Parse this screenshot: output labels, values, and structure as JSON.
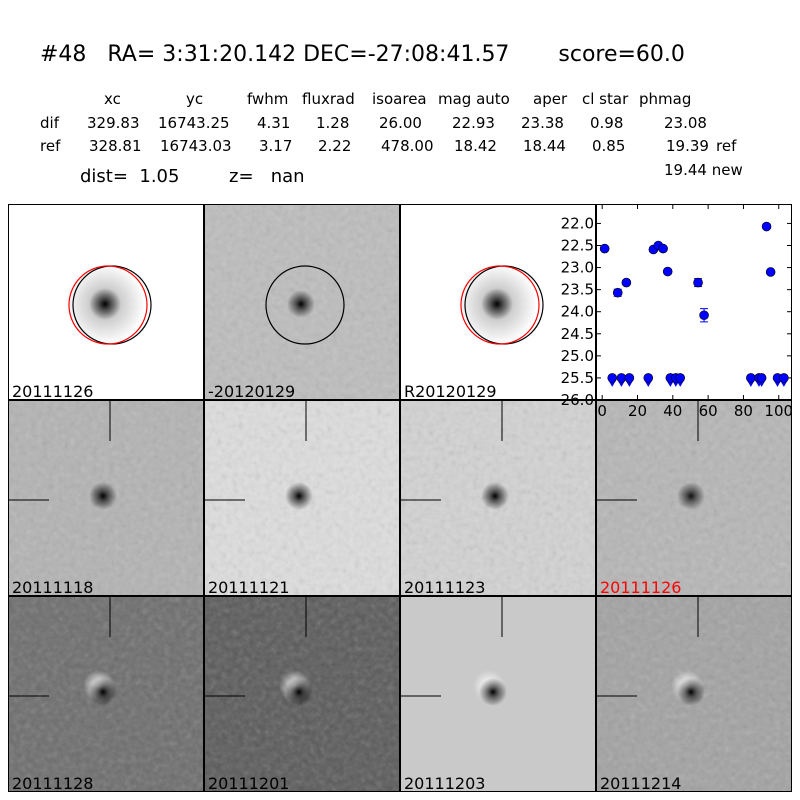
{
  "header": {
    "title": "#48   RA= 3:31:20.142 DEC=-27:08:41.57       score=60.0",
    "columns": [
      "xc",
      "yc",
      "fwhm",
      "fluxrad",
      "isoarea",
      "mag auto",
      "aper",
      "cl star",
      "phmag"
    ],
    "rows": [
      {
        "label": "dif",
        "values": [
          "329.83",
          "16743.25",
          "4.31",
          "1.28",
          "26.00",
          "22.93",
          "23.38",
          "0.98",
          "23.08"
        ],
        "suffix": ""
      },
      {
        "label": "ref",
        "values": [
          "328.81",
          "16743.03",
          "3.17",
          "2.22",
          "478.00",
          "18.42",
          "18.44",
          "0.85",
          "19.39"
        ],
        "suffix": "ref"
      }
    ],
    "new_phmag": "19.44 new",
    "dist": "dist=  1.05",
    "z": "z=   nan"
  },
  "stamps": [
    {
      "label": "20111126",
      "bg": "#ffffff",
      "blob": "#000000",
      "noise": false,
      "circles": [
        "black",
        "red"
      ],
      "cross": false,
      "label_color": "#000000",
      "kind": "ref"
    },
    {
      "label": "-20120129",
      "bg": "#bdbdbd",
      "blob": "#000000",
      "noise": true,
      "circles": [
        "black"
      ],
      "cross": false,
      "label_color": "#000000",
      "kind": "diff"
    },
    {
      "label": "R20120129",
      "bg": "#ffffff",
      "blob": "#000000",
      "noise": false,
      "circles": [
        "black",
        "red"
      ],
      "cross": false,
      "label_color": "#000000",
      "kind": "ref"
    },
    null,
    {
      "label": "20111118",
      "bg": "#b3b3b3",
      "blob": "#000000",
      "noise": true,
      "cross": true,
      "label_color": "#000000"
    },
    {
      "label": "20111121",
      "bg": "#dedede",
      "blob": "#000000",
      "noise": true,
      "cross": true,
      "label_color": "#000000"
    },
    {
      "label": "20111123",
      "bg": "#d3d3d3",
      "blob": "#000000",
      "noise": true,
      "cross": true,
      "label_color": "#000000"
    },
    {
      "label": "20111126",
      "bg": "#b6b6b6",
      "blob": "#111111",
      "noise": true,
      "cross": true,
      "label_color": "#ff0000"
    },
    {
      "label": "20111128",
      "bg": "#6c6c6c",
      "blob": "#000000",
      "noise": true,
      "cross": true,
      "label_color": "#000000",
      "white": true
    },
    {
      "label": "20111201",
      "bg": "#595959",
      "blob": "#000000",
      "noise": true,
      "cross": true,
      "label_color": "#000000",
      "white": true
    },
    {
      "label": "20111203",
      "bg": "#c9c9c9",
      "blob": "#000000",
      "noise": false,
      "cross": true,
      "label_color": "#000000",
      "white": true
    },
    {
      "label": "20111214",
      "bg": "#a2a2a2",
      "blob": "#000000",
      "noise": true,
      "cross": true,
      "label_color": "#000000",
      "white": true
    }
  ],
  "chart_data": {
    "type": "scatter",
    "xlim": [
      -3.5,
      107.5
    ],
    "ylim": [
      26.0,
      21.56
    ],
    "y_inverted": true,
    "x_ticks": [
      "0",
      "20",
      "40",
      "60",
      "80",
      "100"
    ],
    "y_ticks": [
      "22.0",
      "22.5",
      "23.0",
      "23.5",
      "24.0",
      "24.5",
      "25.0",
      "25.5",
      "26.0"
    ],
    "color": "#0000ff",
    "detections": [
      {
        "x": 1.4,
        "y": 22.57,
        "err": 0.03
      },
      {
        "x": 8.8,
        "y": 23.57,
        "err": 0.08
      },
      {
        "x": 13.7,
        "y": 23.34,
        "err": 0.03
      },
      {
        "x": 29.0,
        "y": 22.59,
        "err": 0.03
      },
      {
        "x": 31.8,
        "y": 22.5,
        "err": 0.03
      },
      {
        "x": 34.5,
        "y": 22.57,
        "err": 0.03
      },
      {
        "x": 37.1,
        "y": 23.09,
        "err": 0.03
      },
      {
        "x": 54.3,
        "y": 23.34,
        "err": 0.09
      },
      {
        "x": 57.7,
        "y": 24.08,
        "err": 0.15
      },
      {
        "x": 93.1,
        "y": 22.07,
        "err": 0.03
      },
      {
        "x": 95.4,
        "y": 23.1,
        "err": 0.03
      }
    ],
    "upper_limits": {
      "y": 25.5,
      "x": [
        5.7,
        10.9,
        15.4,
        26.1,
        38.6,
        41.7,
        44.2,
        84.2,
        88.8,
        90.3,
        99.3,
        102.9
      ]
    },
    "grid": false
  }
}
